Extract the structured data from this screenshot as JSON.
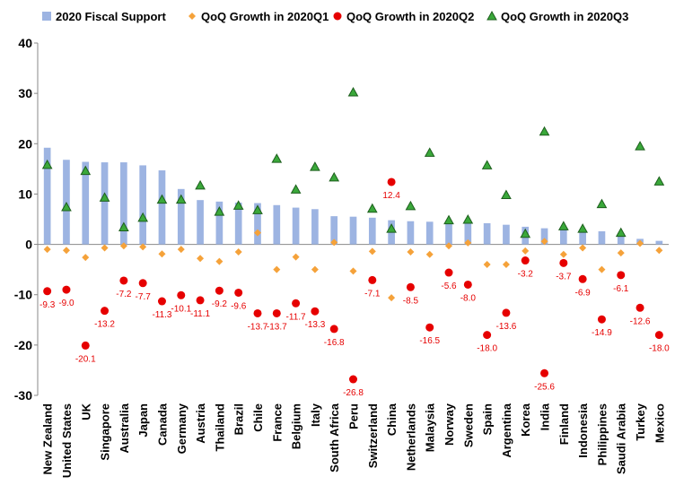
{
  "chart_data": {
    "type": "combo",
    "categories": [
      "New Zealand",
      "United States",
      "UK",
      "Singapore",
      "Australia",
      "Japan",
      "Canada",
      "Germany",
      "Austria",
      "Thailand",
      "Brazil",
      "Chile",
      "France",
      "Belgium",
      "Italy",
      "South Africa",
      "Peru",
      "Switzerland",
      "China",
      "Netherlands",
      "Malaysia",
      "Norway",
      "Sweden",
      "Spain",
      "Argentina",
      "Korea",
      "India",
      "Finland",
      "Indonesia",
      "Philippines",
      "Saudi Arabia",
      "Turkey",
      "Mexico"
    ],
    "series": [
      {
        "name": "2020 Fiscal Support",
        "marker": "bar",
        "color": "#9db4e2",
        "values": [
          19.2,
          16.8,
          16.4,
          16.3,
          16.3,
          15.7,
          14.7,
          11.0,
          8.8,
          8.5,
          8.3,
          8.2,
          7.8,
          7.3,
          7.0,
          5.6,
          5.5,
          5.3,
          4.8,
          4.6,
          4.5,
          4.3,
          4.3,
          4.2,
          3.9,
          3.5,
          3.2,
          3.1,
          2.8,
          2.6,
          2.2,
          1.1,
          0.7
        ]
      },
      {
        "name": "QoQ Growth in 2020Q1",
        "marker": "diamond",
        "color": "#f5a23a",
        "values": [
          -1.0,
          -1.2,
          -2.6,
          -0.7,
          -0.3,
          -0.5,
          -1.9,
          -1.0,
          -2.8,
          -3.4,
          -1.5,
          2.3,
          -5.0,
          -2.5,
          -5.0,
          0.4,
          -5.3,
          -1.4,
          -10.6,
          -1.5,
          -2.0,
          -0.3,
          0.3,
          -4.0,
          -4.0,
          -1.3,
          0.6,
          -2.0,
          -0.7,
          -5.0,
          -1.7,
          0.2,
          -1.2
        ]
      },
      {
        "name": "QoQ Growth in 2020Q2",
        "marker": "circle",
        "color": "#e60000",
        "values": [
          -9.3,
          -9.0,
          -20.1,
          -13.2,
          -7.2,
          -7.7,
          -11.3,
          -10.1,
          -11.1,
          -9.2,
          -9.6,
          -13.7,
          -13.7,
          -11.7,
          -13.3,
          -16.8,
          -26.8,
          -7.1,
          12.4,
          -8.5,
          -16.5,
          -5.6,
          -8.0,
          -18.0,
          -13.6,
          -3.2,
          -25.6,
          -3.7,
          -6.9,
          -14.9,
          -6.1,
          -12.6,
          -18.0
        ],
        "value_labels": [
          "-9.3",
          "-9.0",
          "-20.1",
          "-13.2",
          "-7.2",
          "-7.7",
          "-11.3",
          "-10.1",
          "-11.1",
          "-9.2",
          "-9.6",
          "-13.7",
          "-13.7",
          "-11.7",
          "-13.3",
          "-16.8",
          "-26.8",
          "-7.1",
          "12.4",
          "-8.5",
          "-16.5",
          "-5.6",
          "-8.0",
          "-18.0",
          "-13.6",
          "-3.2",
          "-25.6",
          "-3.7",
          "-6.9",
          "-14.9",
          "-6.1",
          "-12.6",
          "-18.0"
        ]
      },
      {
        "name": "QoQ Growth in 2020Q3",
        "marker": "triangle",
        "color": "#3aa83a",
        "values": [
          15.8,
          7.4,
          14.6,
          9.3,
          3.4,
          5.3,
          8.9,
          8.9,
          11.7,
          6.5,
          7.7,
          6.8,
          17.0,
          10.9,
          15.4,
          13.3,
          30.2,
          7.1,
          3.1,
          7.6,
          18.2,
          4.8,
          4.9,
          15.7,
          9.8,
          2.1,
          22.4,
          3.6,
          3.1,
          8.0,
          2.3,
          19.5,
          12.5
        ]
      }
    ],
    "ylim": [
      -30,
      40
    ],
    "yticks": [
      -30,
      -20,
      -10,
      0,
      10,
      20,
      30,
      40
    ],
    "grid": false,
    "legend": "top"
  }
}
